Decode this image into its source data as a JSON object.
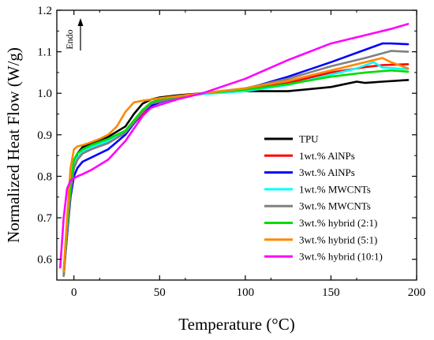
{
  "chart_data": {
    "type": "line",
    "title": "",
    "xlabel": "Temperature (°C)",
    "ylabel": "Normalized Heat Flow (W/g)",
    "xlim": [
      -10,
      200
    ],
    "ylim": [
      0.55,
      1.2
    ],
    "xticks": [
      0,
      50,
      100,
      150,
      200
    ],
    "yticks": [
      0.6,
      0.7,
      0.8,
      0.9,
      1.0,
      1.1,
      1.2
    ],
    "xtick_labels": [
      "0",
      "50",
      "100",
      "150",
      "200"
    ],
    "ytick_labels": [
      "0.6",
      "0.7",
      "0.8",
      "0.9",
      "1.0",
      "1.1",
      "1.2"
    ],
    "annotation": "Endo",
    "grid": false,
    "legend_position": "bottom-right",
    "series": [
      {
        "name": "TPU",
        "color": "#000000",
        "x": [
          -6,
          -4,
          -2,
          0,
          2,
          5,
          10,
          20,
          30,
          35,
          40,
          45,
          50,
          60,
          75,
          100,
          125,
          150,
          165,
          170,
          180,
          195
        ],
        "y": [
          0.56,
          0.66,
          0.76,
          0.83,
          0.855,
          0.87,
          0.88,
          0.895,
          0.92,
          0.95,
          0.975,
          0.985,
          0.99,
          0.995,
          1.0,
          1.005,
          1.005,
          1.015,
          1.028,
          1.025,
          1.028,
          1.032
        ]
      },
      {
        "name": "1wt.%  AlNPs",
        "color": "#ff0000",
        "x": [
          -6,
          -4,
          -2,
          0,
          2,
          5,
          10,
          20,
          30,
          40,
          45,
          50,
          60,
          75,
          100,
          125,
          150,
          170,
          180,
          195
        ],
        "y": [
          0.57,
          0.68,
          0.77,
          0.82,
          0.84,
          0.855,
          0.865,
          0.88,
          0.905,
          0.95,
          0.97,
          0.98,
          0.99,
          1.0,
          1.008,
          1.025,
          1.05,
          1.063,
          1.068,
          1.07
        ]
      },
      {
        "name": "3wt.% AlNPs",
        "color": "#0000ff",
        "x": [
          -6,
          -4,
          -2,
          0,
          2,
          5,
          10,
          20,
          30,
          40,
          45,
          50,
          60,
          75,
          100,
          125,
          150,
          170,
          180,
          185,
          195
        ],
        "y": [
          0.57,
          0.66,
          0.75,
          0.8,
          0.82,
          0.835,
          0.845,
          0.865,
          0.9,
          0.955,
          0.97,
          0.978,
          0.99,
          1.0,
          1.01,
          1.04,
          1.075,
          1.105,
          1.12,
          1.12,
          1.118
        ]
      },
      {
        "name": "1wt.% MWCNTs",
        "color": "#00ffff",
        "x": [
          -6,
          -4,
          -2,
          0,
          2,
          5,
          10,
          20,
          30,
          40,
          45,
          50,
          60,
          75,
          100,
          125,
          150,
          165,
          175,
          180,
          195
        ],
        "y": [
          0.57,
          0.68,
          0.77,
          0.83,
          0.845,
          0.86,
          0.87,
          0.885,
          0.91,
          0.955,
          0.975,
          0.982,
          0.99,
          0.998,
          1.005,
          1.02,
          1.045,
          1.06,
          1.075,
          1.062,
          1.058
        ]
      },
      {
        "name": "3wt.% MWCNTs",
        "color": "#808080",
        "x": [
          -6,
          -4,
          -2,
          0,
          2,
          5,
          10,
          20,
          30,
          40,
          45,
          50,
          60,
          75,
          100,
          125,
          150,
          170,
          185,
          195
        ],
        "y": [
          0.56,
          0.67,
          0.76,
          0.82,
          0.84,
          0.855,
          0.865,
          0.88,
          0.905,
          0.955,
          0.975,
          0.98,
          0.99,
          1.0,
          1.012,
          1.035,
          1.065,
          1.085,
          1.102,
          1.1
        ]
      },
      {
        "name": "3wt.% hybrid (2:1)",
        "color": "#00dd00",
        "x": [
          -6,
          -4,
          -2,
          0,
          2,
          5,
          10,
          20,
          30,
          40,
          45,
          50,
          60,
          75,
          100,
          125,
          150,
          170,
          185,
          195
        ],
        "y": [
          0.57,
          0.68,
          0.78,
          0.84,
          0.855,
          0.865,
          0.875,
          0.89,
          0.91,
          0.96,
          0.978,
          0.985,
          0.992,
          1.0,
          1.008,
          1.022,
          1.04,
          1.05,
          1.055,
          1.052
        ]
      },
      {
        "name": "3wt.% hybrid (5:1)",
        "color": "#ff8800",
        "x": [
          -6,
          -4,
          -2,
          0,
          2,
          5,
          10,
          15,
          20,
          25,
          30,
          35,
          40,
          45,
          50,
          60,
          75,
          100,
          125,
          150,
          170,
          180,
          185,
          195
        ],
        "y": [
          0.57,
          0.7,
          0.82,
          0.865,
          0.872,
          0.875,
          0.882,
          0.89,
          0.9,
          0.92,
          0.955,
          0.978,
          0.982,
          0.985,
          0.988,
          0.993,
          1.0,
          1.012,
          1.03,
          1.055,
          1.075,
          1.085,
          1.075,
          1.06
        ]
      },
      {
        "name": "3wt.% hybrid (10:1)",
        "color": "#ff00ff",
        "x": [
          -8,
          -6,
          -4,
          -2,
          0,
          2,
          5,
          10,
          20,
          30,
          40,
          45,
          50,
          60,
          75,
          100,
          125,
          150,
          170,
          185,
          195
        ],
        "y": [
          0.58,
          0.7,
          0.77,
          0.79,
          0.795,
          0.8,
          0.805,
          0.815,
          0.84,
          0.885,
          0.945,
          0.965,
          0.972,
          0.985,
          1.0,
          1.035,
          1.08,
          1.12,
          1.14,
          1.155,
          1.167
        ]
      }
    ]
  }
}
